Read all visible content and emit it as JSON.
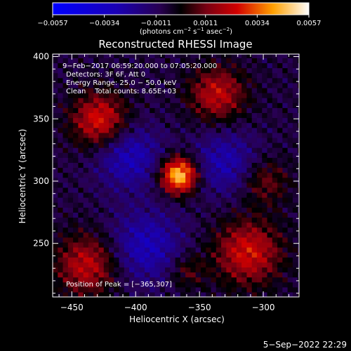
{
  "chart_data": {
    "type": "heatmap",
    "title": "Reconstructed RHESSI Image",
    "xlabel": "Heliocentric X (arcsec)",
    "ylabel": "Heliocentric Y (arcsec)",
    "xlim": [
      -465,
      -272
    ],
    "ylim": [
      207,
      402
    ],
    "x_ticks": [
      -450,
      -400,
      -350,
      -300
    ],
    "y_ticks": [
      250,
      300,
      350,
      400
    ],
    "colorbar": {
      "ticks": [
        -0.0057,
        -0.0034,
        -0.0011,
        0.0011,
        0.0034,
        0.0057
      ],
      "tick_labels": [
        "−0.0057",
        "−0.0034",
        "−0.0011",
        "0.0011",
        "0.0034",
        "0.0057"
      ],
      "range": [
        -0.0057,
        0.0057
      ],
      "unit_label_parts": [
        "(photons cm",
        "−2",
        " s",
        "−1",
        " asec",
        "−2",
        ")"
      ]
    },
    "annotations": [
      "9−Feb−2017 06:59:20.000 to 07:05:20.000",
      "Detectors: 3F 6F, Att 0",
      "Energy Range: 25.0 − 50.0 keV",
      "Clean    Total counts: 8.65E+03"
    ],
    "peak_label": "Position of Peak = [−365,307]",
    "peak_position": [
      -365,
      307
    ],
    "footer": "5−Sep−2022 22:29",
    "grid": false,
    "sources": [
      {
        "x": -366,
        "y": 305,
        "amp": 1.0,
        "sigma": 10
      },
      {
        "x": -428,
        "y": 349,
        "amp": 0.6,
        "sigma": 15
      },
      {
        "x": -336,
        "y": 370,
        "amp": 0.5,
        "sigma": 15
      },
      {
        "x": -438,
        "y": 233,
        "amp": 0.5,
        "sigma": 17
      },
      {
        "x": -312,
        "y": 243,
        "amp": 0.55,
        "sigma": 18
      },
      {
        "x": -299,
        "y": 300,
        "amp": 0.3,
        "sigma": 13
      },
      {
        "x": -360,
        "y": 228,
        "amp": 0.25,
        "sigma": 10
      },
      {
        "x": -392,
        "y": 248,
        "amp": -0.4,
        "sigma": 20
      },
      {
        "x": -405,
        "y": 320,
        "amp": -0.4,
        "sigma": 18
      },
      {
        "x": -330,
        "y": 315,
        "amp": -0.35,
        "sigma": 18
      }
    ]
  }
}
